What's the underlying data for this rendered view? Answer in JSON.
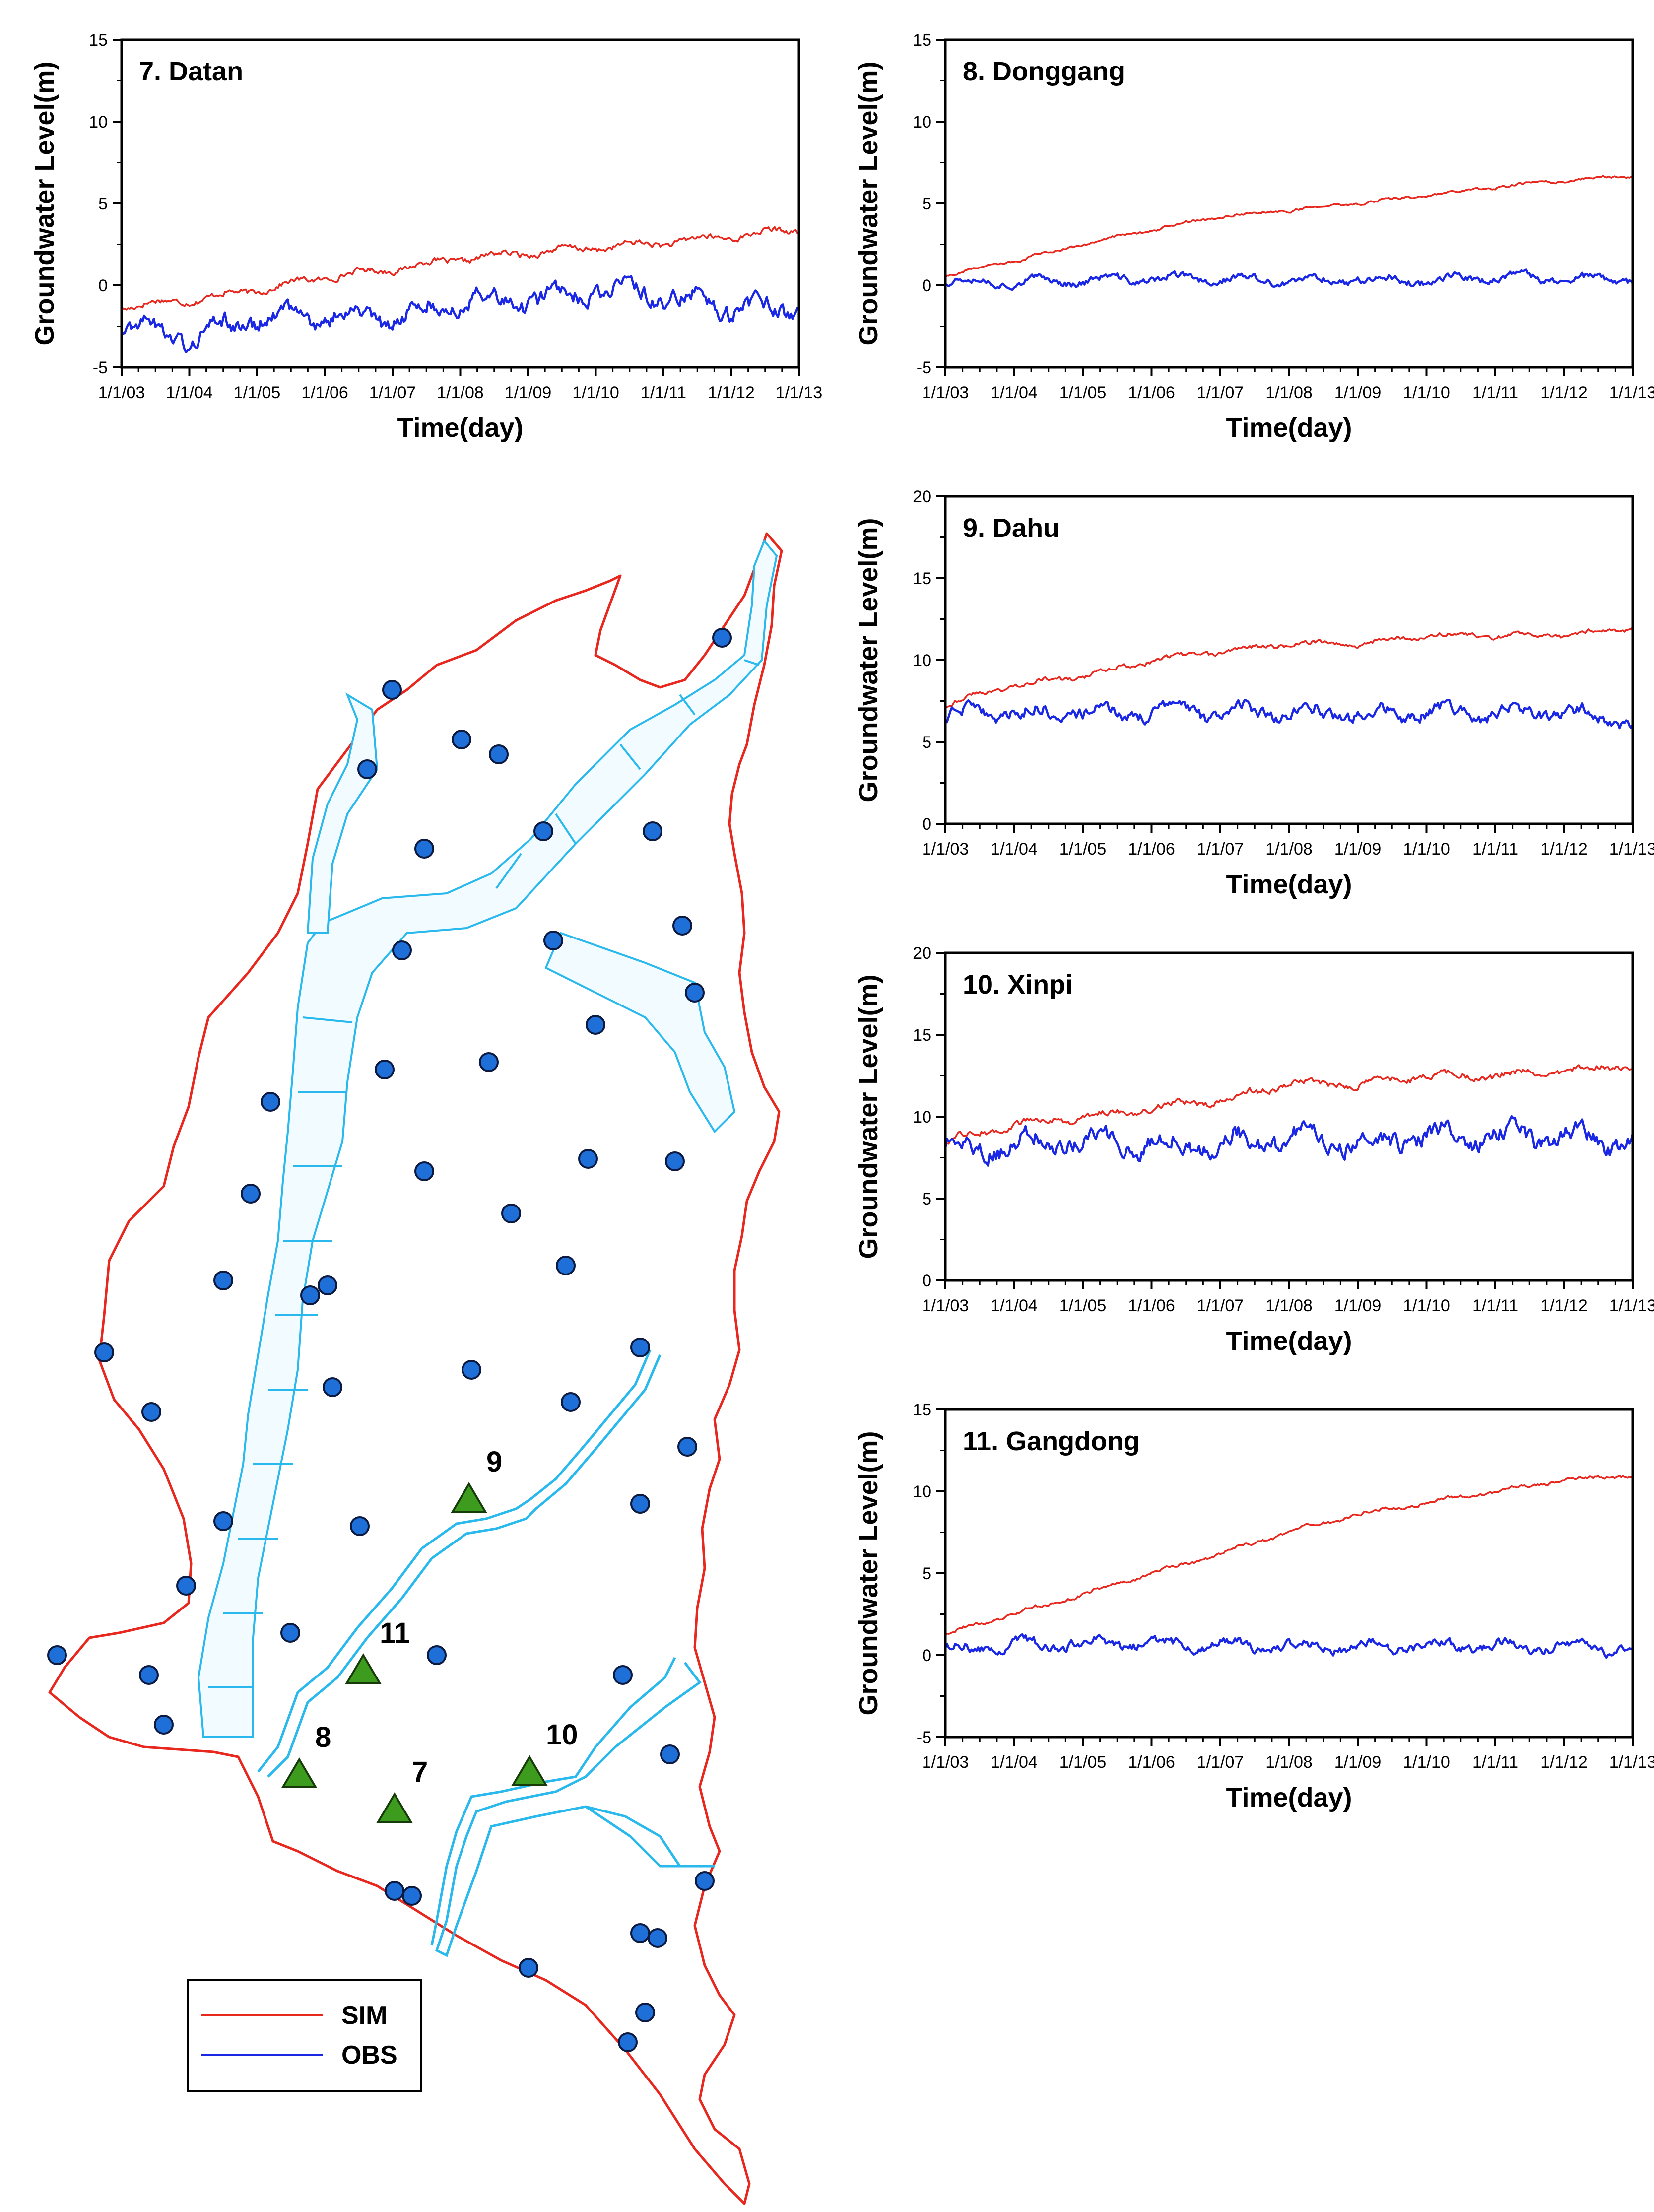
{
  "colors": {
    "sim": "#e8281e",
    "obs": "#1a28e6",
    "boundary": "#e8281e",
    "mesh": "#29b9ec",
    "well": "#1f6fd8",
    "station": "#3d9c1e"
  },
  "legend": {
    "sim_label": "SIM",
    "obs_label": "OBS"
  },
  "map": {
    "station_labels": [
      "9",
      "11",
      "8",
      "7",
      "10"
    ],
    "icons": [
      "observation-well-icon",
      "monitoring-station-triangle-icon"
    ]
  },
  "chart_data": [
    {
      "type": "line",
      "title": "7. Datan",
      "xlabel": "Time(day)",
      "ylabel": "Groundwater Level(m)",
      "ylim": [
        -5,
        15
      ],
      "yticks": [
        "-5",
        "0",
        "5",
        "10",
        "15"
      ],
      "xticks": [
        "1/1/03",
        "1/1/04",
        "1/1/05",
        "1/1/06",
        "1/1/07",
        "1/1/08",
        "1/1/09",
        "1/1/10",
        "1/1/11",
        "1/1/12",
        "1/1/13"
      ],
      "x": [
        0,
        1,
        2,
        3,
        4,
        5,
        6,
        7,
        8,
        9,
        10
      ],
      "series": [
        {
          "name": "SIM",
          "values": [
            -1.3,
            -0.9,
            -0.3,
            0.5,
            1.0,
            1.6,
            2.0,
            2.3,
            2.6,
            3.0,
            3.4
          ]
        },
        {
          "name": "OBS",
          "values": [
            -2.2,
            -3.2,
            -2.0,
            -1.8,
            -2.0,
            -0.8,
            -1.0,
            -0.3,
            -0.6,
            -1.3,
            -1.4
          ]
        }
      ]
    },
    {
      "type": "line",
      "title": "8. Donggang",
      "xlabel": "Time(day)",
      "ylabel": "Groundwater Level(m)",
      "ylim": [
        -5,
        15
      ],
      "yticks": [
        "-5",
        "0",
        "5",
        "10",
        "15"
      ],
      "xticks": [
        "1/1/03",
        "1/1/04",
        "1/1/05",
        "1/1/06",
        "1/1/07",
        "1/1/08",
        "1/1/09",
        "1/1/10",
        "1/1/11",
        "1/1/12",
        "1/1/13"
      ],
      "x": [
        0,
        1,
        2,
        3,
        4,
        5,
        6,
        7,
        8,
        9,
        10
      ],
      "series": [
        {
          "name": "SIM",
          "values": [
            0.6,
            1.5,
            2.5,
            3.4,
            4.2,
            4.6,
            5.0,
            5.5,
            6.0,
            6.4,
            6.7
          ]
        },
        {
          "name": "OBS",
          "values": [
            0.3,
            0.2,
            0.3,
            0.4,
            0.4,
            0.2,
            0.4,
            0.3,
            0.5,
            0.4,
            0.3
          ]
        }
      ]
    },
    {
      "type": "line",
      "title": "9. Dahu",
      "xlabel": "Time(day)",
      "ylabel": "Groundwater Level(m)",
      "ylim": [
        0,
        20
      ],
      "yticks": [
        "0",
        "5",
        "10",
        "15",
        "20"
      ],
      "xticks": [
        "1/1/03",
        "1/1/04",
        "1/1/05",
        "1/1/06",
        "1/1/07",
        "1/1/08",
        "1/1/09",
        "1/1/10",
        "1/1/11",
        "1/1/12",
        "1/1/13"
      ],
      "x": [
        0,
        1,
        2,
        3,
        4,
        5,
        6,
        7,
        8,
        9,
        10
      ],
      "series": [
        {
          "name": "SIM",
          "values": [
            7.3,
            8.5,
            9.0,
            10.0,
            10.5,
            11.0,
            11.0,
            11.5,
            11.5,
            11.5,
            12.0
          ]
        },
        {
          "name": "OBS",
          "values": [
            6.6,
            6.8,
            6.8,
            6.8,
            6.8,
            6.9,
            6.7,
            6.8,
            6.8,
            6.8,
            6.3
          ]
        }
      ]
    },
    {
      "type": "line",
      "title": "10. Xinpi",
      "xlabel": "Time(day)",
      "ylabel": "Groundwater Level(m)",
      "ylim": [
        0,
        20
      ],
      "yticks": [
        "0",
        "5",
        "10",
        "15",
        "20"
      ],
      "xticks": [
        "1/1/03",
        "1/1/04",
        "1/1/05",
        "1/1/06",
        "1/1/07",
        "1/1/08",
        "1/1/09",
        "1/1/10",
        "1/1/11",
        "1/1/12",
        "1/1/13"
      ],
      "x": [
        0,
        1,
        2,
        3,
        4,
        5,
        6,
        7,
        8,
        9,
        10
      ],
      "series": [
        {
          "name": "SIM",
          "values": [
            8.5,
            9.5,
            10.0,
            10.5,
            11.0,
            12.0,
            12.0,
            12.5,
            12.5,
            12.8,
            13.2
          ]
        },
        {
          "name": "OBS",
          "values": [
            8.2,
            8.2,
            8.6,
            8.3,
            8.5,
            8.7,
            8.5,
            8.8,
            8.8,
            8.7,
            8.3
          ]
        }
      ]
    },
    {
      "type": "line",
      "title": "11. Gangdong",
      "xlabel": "Time(day)",
      "ylabel": "Groundwater Level(m)",
      "ylim": [
        -5,
        15
      ],
      "yticks": [
        "-5",
        "0",
        "5",
        "10",
        "15"
      ],
      "xticks": [
        "1/1/03",
        "1/1/04",
        "1/1/05",
        "1/1/06",
        "1/1/07",
        "1/1/08",
        "1/1/09",
        "1/1/10",
        "1/1/11",
        "1/1/12",
        "1/1/13"
      ],
      "x": [
        0,
        1,
        2,
        3,
        4,
        5,
        6,
        7,
        8,
        9,
        10
      ],
      "series": [
        {
          "name": "SIM",
          "values": [
            1.3,
            2.5,
            3.7,
            5.0,
            6.2,
            7.5,
            8.6,
            9.3,
            10.0,
            10.7,
            11.0
          ]
        },
        {
          "name": "OBS",
          "values": [
            0.4,
            0.6,
            0.7,
            0.7,
            0.6,
            0.6,
            0.5,
            0.6,
            0.6,
            0.5,
            0.4
          ]
        }
      ]
    }
  ]
}
